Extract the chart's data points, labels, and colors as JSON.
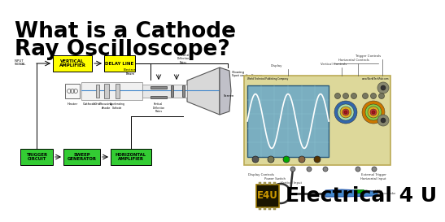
{
  "bg_color": "#ffffff",
  "title_line1": "What is a Cathode",
  "title_line2": "Ray Oscilloscope?",
  "title_color": "#000000",
  "title_fontsize": 19,
  "title_weight": "bold",
  "block_yellow": "#ffff00",
  "block_green": "#33cc33",
  "scope_body_color": "#e8e0a0",
  "scope_screen_color": "#8ab8d8",
  "scope_screen_bg": "#6090b0",
  "e4u_bg": "#2a2000",
  "e4u_text_color": "#d4a800",
  "electrical4u_text": "Electrical 4 U",
  "electrical4u_color": "#000000",
  "electrical4u_fontsize": 18,
  "electrical4u_weight": "bold",
  "diagram_line_color": "#000000",
  "label_fontsize": 3.2,
  "small_label_fontsize": 2.8
}
